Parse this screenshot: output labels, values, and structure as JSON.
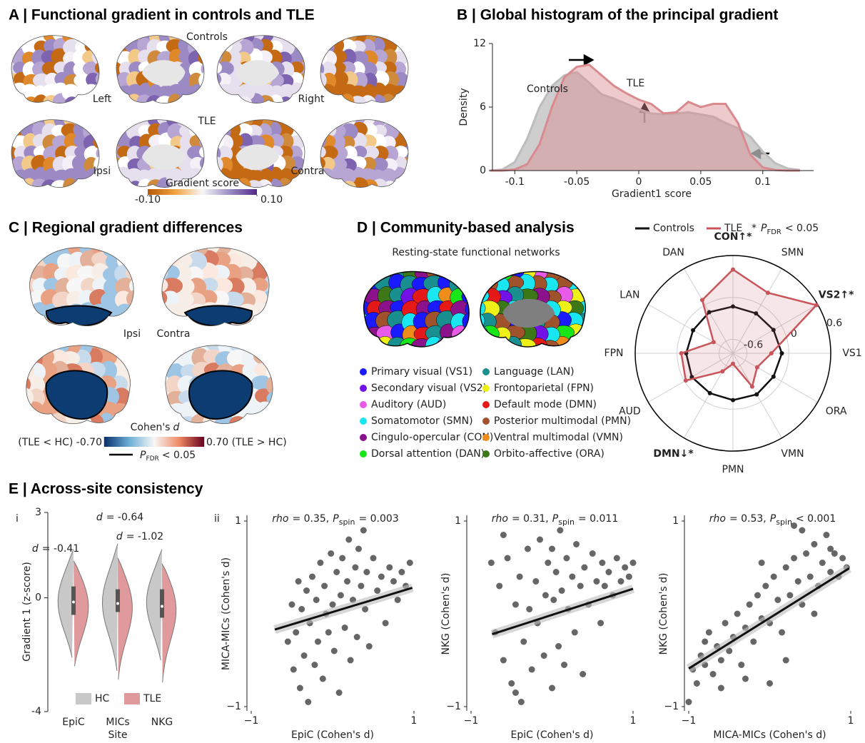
{
  "panels": {
    "A": {
      "title": "A | Functional gradient in controls and TLE",
      "groups": [
        "Controls",
        "TLE"
      ],
      "labels_top": [
        "Left",
        "Right"
      ],
      "labels_bottom": [
        "Ipsi",
        "Contra"
      ],
      "colorbar": {
        "label": "Gradient score",
        "lim": [
          -0.1,
          0.1
        ],
        "ticks": [
          {
            "value": -0.1,
            "label": "-0.10"
          },
          {
            "value": 0.1,
            "label": "0.10"
          }
        ]
      }
    },
    "C": {
      "title": "C | Regional gradient differences",
      "labels": [
        "Ipsi",
        "Contra"
      ],
      "colorbar": {
        "label": "Cohen's",
        "label_italic": "d",
        "lim": [
          -0.7,
          0.7
        ],
        "ticks": [
          {
            "value": -0.7,
            "label": "(TLE < HC) -0.70"
          },
          {
            "value": 0.7,
            "label": "0.70 (TLE > HC)"
          }
        ]
      },
      "outline_legend": {
        "p": "P",
        "sub": "FDR",
        "text": "< 0.05"
      }
    },
    "D": {
      "title": "D | Community-based analysis",
      "subtitle": "Resting-state functional networks",
      "networks": [
        {
          "name": "Primary visual (VS1)",
          "color": "#1a1aff"
        },
        {
          "name": "Secondary visual (VS2)",
          "color": "#7312e6"
        },
        {
          "name": "Auditory (AUD)",
          "color": "#e85be8"
        },
        {
          "name": "Somatomotor (SMN)",
          "color": "#19e6f0"
        },
        {
          "name": "Cingulo-opercular (CON)",
          "color": "#8b128b"
        },
        {
          "name": "Dorsal attention (DAN)",
          "color": "#19e619"
        },
        {
          "name": "Language (LAN)",
          "color": "#1a8f8f"
        },
        {
          "name": "Frontoparietal (FPN)",
          "color": "#f0f019"
        },
        {
          "name": "Default mode (DMN)",
          "color": "#e61919"
        },
        {
          "name": "Posterior multimodal (PMN)",
          "color": "#a0522d"
        },
        {
          "name": "Ventral multimodal (VMN)",
          "color": "#f08c19"
        },
        {
          "name": "Orbito-affective (ORA)",
          "color": "#3c7818"
        }
      ]
    },
    "E": {
      "title": "E | Across-site consistency",
      "sublabels": [
        "i",
        "ii"
      ]
    }
  },
  "chart_data": [
    {
      "type": "area",
      "title": "B | Global histogram of the principal gradient",
      "x": [
        -0.12,
        -0.11,
        -0.1,
        -0.09,
        -0.08,
        -0.07,
        -0.06,
        -0.05,
        -0.04,
        -0.03,
        -0.02,
        -0.01,
        0,
        0.01,
        0.02,
        0.03,
        0.04,
        0.05,
        0.06,
        0.07,
        0.08,
        0.09,
        0.1,
        0.11,
        0.12,
        0.13
      ],
      "series": [
        {
          "name": "Controls",
          "color": "#bdbdbd",
          "label_color": "#111111",
          "values": [
            0,
            0.1,
            0.8,
            3,
            6,
            8,
            9,
            9.3,
            8.3,
            7.2,
            6.8,
            6.3,
            5.8,
            5.4,
            5.3,
            5.4,
            5.5,
            5.3,
            5.1,
            4.5,
            4,
            3.2,
            1.8,
            0.7,
            0.2,
            0.05
          ]
        },
        {
          "name": "TLE",
          "color": "#d98a8f",
          "label_color": "#e0959a",
          "values": [
            0,
            0,
            0.1,
            0.6,
            2.5,
            6,
            8.8,
            9.8,
            10,
            9,
            8,
            7.3,
            6.7,
            6.3,
            5.4,
            5.5,
            6.5,
            6,
            6.3,
            6.3,
            4.5,
            1.5,
            0.3,
            0.05,
            0,
            0
          ]
        }
      ],
      "xlim": [
        -0.118,
        0.141
      ],
      "ylim": [
        0,
        12
      ],
      "xticks": [
        -0.1,
        -0.05,
        0,
        0.05,
        0.1
      ],
      "yticks": [
        0,
        6,
        12
      ],
      "xlabel": "Gradient1 score",
      "ylabel": "Density"
    },
    {
      "type": "radar",
      "categories": [
        "VS1",
        "VS2↑*",
        "SMN",
        "CON↑*",
        "DAN",
        "LAN",
        "FPN",
        "AUD",
        "DMN↓*",
        "PMN",
        "VMN",
        "ORA"
      ],
      "category_colors": [
        "#111111",
        "#e8111b",
        "#111111",
        "#e8111b",
        "#111111",
        "#111111",
        "#111111",
        "#111111",
        "#1b1be8",
        "#111111",
        "#111111",
        "#111111"
      ],
      "series": [
        {
          "name": "Controls",
          "color": "#111111",
          "values": [
            -0.1,
            -0.13,
            -0.14,
            -0.13,
            -0.12,
            -0.14,
            -0.13,
            -0.12,
            -0.14,
            -0.13,
            -0.12,
            -0.13
          ]
        },
        {
          "name": "TLE",
          "color": "#c9555b",
          "values": [
            -0.25,
            0.58,
            0.2,
            0.4,
            0.08,
            -0.48,
            -0.06,
            -0.02,
            -0.5,
            -0.65,
            -0.25,
            -0.4
          ]
        }
      ],
      "rlim": [
        -0.8,
        0.6
      ],
      "rticks": [
        -0.6,
        0,
        0.6
      ],
      "legend": "top",
      "significance_note": {
        "star": "*",
        "p": "P",
        "sub": "FDR",
        "text": "< 0.05"
      }
    },
    {
      "type": "violin",
      "categories": [
        "EpiC",
        "MICs",
        "NKG"
      ],
      "series": [
        {
          "name": "HC",
          "color": "#c8c8c8",
          "min": [
            -2.3,
            -2.8,
            -2.4
          ],
          "max": [
            1.7,
            1.9,
            1.7
          ]
        },
        {
          "name": "TLE",
          "color": "#e09a9c",
          "min": [
            -2.6,
            -3.1,
            -3.2
          ],
          "max": [
            1.3,
            1.4,
            1.2
          ]
        }
      ],
      "box": {
        "q1": [
          -0.6,
          -0.5,
          -0.7
        ],
        "median": [
          -0.15,
          -0.2,
          -0.3
        ],
        "q3": [
          0.4,
          0.3,
          0.3
        ]
      },
      "ylim": [
        -4,
        3
      ],
      "yticks": [
        -4,
        0,
        3
      ],
      "xlabel": "Site",
      "ylabel": "Gradient 1 (z-score)",
      "annotations": [
        {
          "italic": "d",
          "text": "= -0.64"
        },
        {
          "italic": "d",
          "text": "= -0.41"
        },
        {
          "italic": "d",
          "text": "= -1.02"
        }
      ],
      "legend": "bottom"
    },
    {
      "type": "scatter",
      "color": "#666666",
      "annotation": {
        "r": "rho",
        "r_text": "= 0.35,",
        "p": "P",
        "sub": "spin",
        "p_text": "= 0.003"
      },
      "x": [
        -0.55,
        -0.5,
        -0.48,
        -0.45,
        -0.42,
        -0.4,
        -0.38,
        -0.35,
        -0.32,
        -0.3,
        -0.28,
        -0.25,
        -0.22,
        -0.2,
        -0.18,
        -0.15,
        -0.12,
        -0.1,
        -0.08,
        -0.05,
        -0.02,
        0,
        0.02,
        0.05,
        0.08,
        0.1,
        0.12,
        0.15,
        0.18,
        0.2,
        0.22,
        0.25,
        0.28,
        0.3,
        0.32,
        0.35,
        0.38,
        0.4,
        0.42,
        0.45,
        0.5,
        0.55,
        0.6,
        0.65,
        0.7,
        0.75,
        0.8,
        0.85,
        0.9,
        0.95
      ],
      "values": [
        -0.3,
        0.1,
        -0.6,
        -0.2,
        0.35,
        -0.8,
        0.05,
        -0.45,
        0.25,
        -0.95,
        -0.1,
        0.4,
        -0.55,
        0.15,
        -0.3,
        0.55,
        -0.7,
        0.3,
        0,
        -0.2,
        0.65,
        0.1,
        -0.4,
        0.45,
        -0.85,
        0.2,
        0.6,
        -0.15,
        0.35,
        0.8,
        -0.5,
        0.15,
        0.5,
        -0.25,
        0.7,
        0.3,
        0.9,
        0.05,
        0.45,
        -0.35,
        0.6,
        0.25,
        0.4,
        -0.1,
        0.5,
        0.35,
        0.15,
        0.45,
        0.3,
        0.55
      ],
      "fit": {
        "x": [
          -0.71,
          0.98
        ],
        "y": [
          -0.17,
          0.28
        ]
      },
      "xlim": [
        -1,
        1
      ],
      "ylim": [
        -1,
        1
      ],
      "xticks": [
        {
          "value": -1,
          "label": "−1"
        },
        1
      ],
      "yticks": [
        {
          "value": -1,
          "label": "−1"
        },
        1
      ],
      "xlabel": "EpiC (Cohen's d)",
      "ylabel": "MICA-MICs (Cohen's d)"
    },
    {
      "type": "scatter",
      "color": "#666666",
      "annotation": {
        "r": "rho",
        "r_text": "= 0.31,",
        "p": "P",
        "sub": "spin",
        "p_text": "= 0.011"
      },
      "x": [
        -0.75,
        -0.7,
        -0.65,
        -0.6,
        -0.55,
        -0.5,
        -0.45,
        -0.4,
        -0.38,
        -0.35,
        -0.3,
        -0.28,
        -0.25,
        -0.2,
        -0.18,
        -0.15,
        -0.1,
        -0.08,
        -0.05,
        0,
        0.02,
        0.05,
        0.08,
        0.1,
        0.12,
        0.15,
        0.18,
        0.2,
        0.25,
        0.28,
        0.3,
        0.35,
        0.38,
        0.4,
        0.45,
        0.5,
        0.55,
        0.6,
        0.62,
        0.65,
        0.7,
        0.75,
        0.8,
        0.85,
        0.9,
        0.95,
        1,
        -0.6,
        -0.45,
        0
      ],
      "values": [
        0.55,
        -0.2,
        0.3,
        -0.5,
        0.6,
        -0.75,
        0.1,
        0.4,
        -0.95,
        -0.3,
        0.7,
        0.05,
        -0.6,
        0.35,
        -0.1,
        0.8,
        -0.45,
        0.2,
        0.55,
        -0.8,
        0.15,
        0.45,
        -0.35,
        0.9,
        0.25,
        -0.55,
        0.6,
        0.05,
        0.4,
        -0.2,
        0.75,
        0.3,
        -0.65,
        0.5,
        0.1,
        0.65,
        0.35,
        -0.1,
        0.55,
        0.3,
        0.45,
        0.2,
        0.6,
        0.35,
        0.5,
        0.4,
        0.55,
        0.85,
        -0.85,
        0.7
      ],
      "fit": {
        "x": [
          -0.74,
          1
        ],
        "y": [
          -0.22,
          0.27
        ]
      },
      "xlim": [
        -1,
        1
      ],
      "ylim": [
        -1,
        1
      ],
      "xticks": [
        {
          "value": -1,
          "label": "−1"
        },
        1
      ],
      "yticks": [
        {
          "value": -1,
          "label": "−1"
        },
        1
      ],
      "xlabel": "EpiC (Cohen's d)",
      "ylabel": "NKG (Cohen's d)"
    },
    {
      "type": "scatter",
      "color": "#666666",
      "annotation": {
        "r": "rho",
        "r_text": "= 0.53,",
        "p": "P",
        "sub": "spin",
        "p_text": "< 0.001"
      },
      "x": [
        -1,
        -0.95,
        -0.9,
        -0.85,
        -0.8,
        -0.75,
        -0.7,
        -0.65,
        -0.6,
        -0.55,
        -0.5,
        -0.45,
        -0.4,
        -0.35,
        -0.3,
        -0.25,
        -0.2,
        -0.15,
        -0.1,
        -0.05,
        0,
        0.05,
        0.1,
        0.15,
        0.2,
        0.25,
        0.3,
        0.35,
        0.4,
        0.45,
        0.5,
        0.55,
        0.6,
        0.65,
        0.7,
        0.75,
        0.8,
        0.85,
        0.9,
        0.95,
        -0.6,
        -0.3,
        0,
        0.2,
        0.4,
        -0.8,
        -0.1,
        0.3,
        0.55,
        0.75
      ],
      "values": [
        -0.95,
        -0.6,
        -0.75,
        -0.45,
        -0.55,
        -0.2,
        -0.65,
        -0.35,
        -0.5,
        -0.1,
        -0.4,
        -0.25,
        0,
        -0.55,
        -0.15,
        0.1,
        -0.3,
        0.2,
        -0.05,
        0.3,
        -0.1,
        0.4,
        0.15,
        -0.2,
        0.5,
        0.2,
        0.6,
        0.35,
        0.1,
        0.65,
        0.4,
        0.75,
        0.3,
        0.55,
        0.85,
        0.45,
        0.65,
        0.4,
        0.6,
        0.5,
        -0.8,
        -0.7,
        -0.75,
        -0.5,
        0.9,
        -0.3,
        0.55,
        0.95,
        0,
        0.7
      ],
      "fit": {
        "x": [
          -1,
          0.98
        ],
        "y": [
          -0.59,
          0.49
        ]
      },
      "xlim": [
        -1,
        1
      ],
      "ylim": [
        -1,
        1
      ],
      "xticks": [
        {
          "value": -1,
          "label": "−1"
        },
        1
      ],
      "yticks": [
        {
          "value": -1,
          "label": "−1"
        },
        1
      ],
      "xlabel": "MICA-MICs (Cohen's d)",
      "ylabel": "NKG (Cohen's d)"
    }
  ]
}
